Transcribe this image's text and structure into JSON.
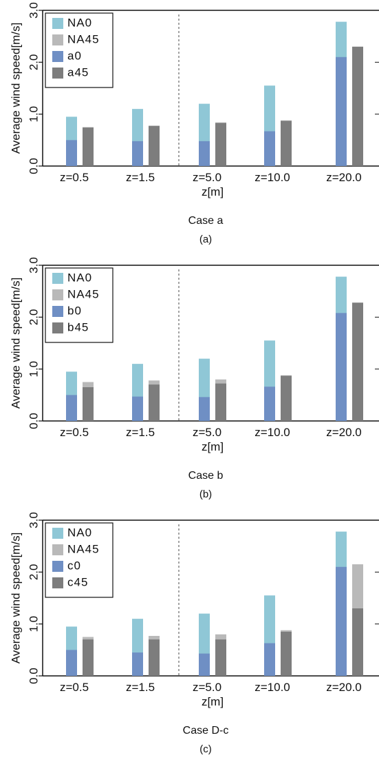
{
  "colors": {
    "NA0": "#8fc7d6",
    "NA45": "#b9b9b9",
    "case0": "#6f8fc4",
    "case45": "#7d7d7d",
    "axis": "#111111",
    "divider": "#666666"
  },
  "chart_data": [
    {
      "type": "bar",
      "layout": "overlaid-pairs",
      "ylabel": "Average wind speed[m/s]",
      "xlabel": "z[m]",
      "caption": "Case  a",
      "sublabel": "(a)",
      "ylim": [
        0,
        3.0
      ],
      "yticks": [
        "0.0",
        "1.0",
        "2.0",
        "3.0"
      ],
      "categories": [
        "z=0.5",
        "z=1.5",
        "z=5.0",
        "z=10.0",
        "z=20.0"
      ],
      "legend_position": "top-left",
      "series": [
        {
          "name": "NA0",
          "values": [
            0.95,
            1.1,
            1.2,
            1.55,
            2.78
          ]
        },
        {
          "name": "NA45",
          "values": [
            0.75,
            0.78,
            0.84,
            0.88,
            2.15
          ]
        },
        {
          "name": "a0",
          "values": [
            0.5,
            0.48,
            0.48,
            0.67,
            2.1
          ]
        },
        {
          "name": "a45",
          "values": [
            0.74,
            0.77,
            0.83,
            0.87,
            2.3
          ]
        }
      ]
    },
    {
      "type": "bar",
      "layout": "overlaid-pairs",
      "ylabel": "Average wind speed[m/s]",
      "xlabel": "z[m]",
      "caption": "Case  b",
      "sublabel": "(b)",
      "ylim": [
        0,
        3.0
      ],
      "yticks": [
        "0.0",
        "1.0",
        "2.0",
        "3.0"
      ],
      "categories": [
        "z=0.5",
        "z=1.5",
        "z=5.0",
        "z=10.0",
        "z=20.0"
      ],
      "legend_position": "top-left",
      "series": [
        {
          "name": "NA0",
          "values": [
            0.95,
            1.1,
            1.2,
            1.55,
            2.78
          ]
        },
        {
          "name": "NA45",
          "values": [
            0.75,
            0.78,
            0.8,
            0.88,
            2.15
          ]
        },
        {
          "name": "b0",
          "values": [
            0.5,
            0.47,
            0.46,
            0.66,
            2.08
          ]
        },
        {
          "name": "b45",
          "values": [
            0.65,
            0.7,
            0.72,
            0.87,
            2.28
          ]
        }
      ]
    },
    {
      "type": "bar",
      "layout": "overlaid-pairs",
      "ylabel": "Average wind speed[m/s]",
      "xlabel": "z[m]",
      "caption": "Case D-c",
      "sublabel": "(c)",
      "ylim": [
        0,
        3.0
      ],
      "yticks": [
        "0.0",
        "1.0",
        "2.0",
        "3.0"
      ],
      "categories": [
        "z=0.5",
        "z=1.5",
        "z=5.0",
        "z=10.0",
        "z=20.0"
      ],
      "legend_position": "top-left",
      "series": [
        {
          "name": "NA0",
          "values": [
            0.95,
            1.1,
            1.2,
            1.55,
            2.78
          ]
        },
        {
          "name": "NA45",
          "values": [
            0.75,
            0.77,
            0.8,
            0.88,
            2.15
          ]
        },
        {
          "name": "c0",
          "values": [
            0.5,
            0.45,
            0.43,
            0.63,
            2.1
          ]
        },
        {
          "name": "c45",
          "values": [
            0.7,
            0.7,
            0.7,
            0.85,
            1.3
          ]
        }
      ]
    }
  ]
}
